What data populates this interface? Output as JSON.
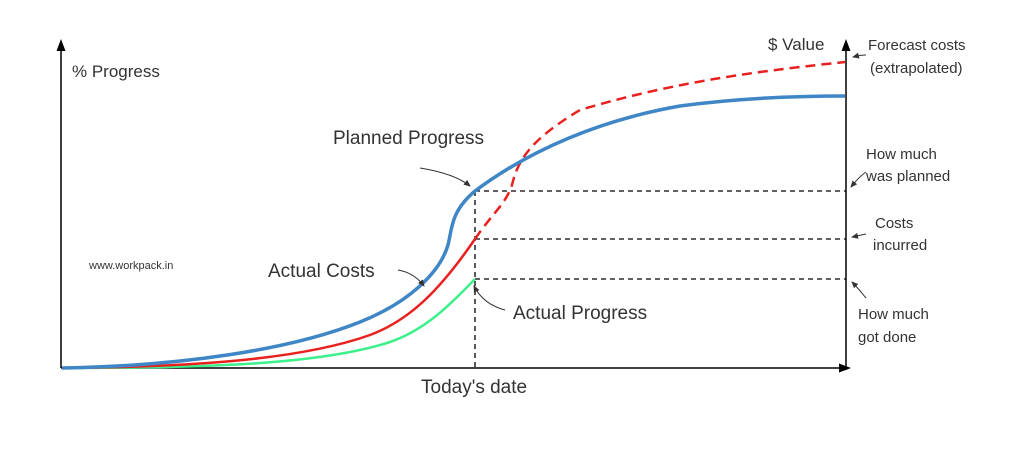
{
  "labels": {
    "left_axis": "% Progress",
    "right_axis": "$ Value",
    "x_axis": "Today's date",
    "planned": "Planned Progress",
    "actual_costs": "Actual Costs",
    "actual_progress": "Actual Progress",
    "watermark": "www.workpack.in",
    "forecast_line1": "Forecast costs",
    "forecast_line2": "(extrapolated)",
    "planned_note_line1": "How much",
    "planned_note_line2": "was planned",
    "costs_note_line1": "Costs",
    "costs_note_line2": "incurred",
    "done_note_line1": "How much",
    "done_note_line2": "got done"
  },
  "colors": {
    "planned": "#3F86C6",
    "actual_costs": "#E8201E",
    "actual_progress": "#3CF08C",
    "axis": "#000000",
    "text": "#333333"
  }
}
